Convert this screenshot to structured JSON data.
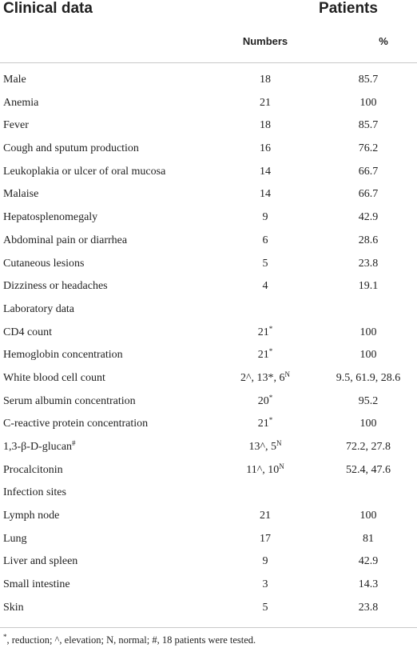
{
  "table": {
    "header": {
      "clinical_data": "Clinical data",
      "patients": "Patients",
      "numbers": "Numbers",
      "percent": "%"
    },
    "rows": [
      {
        "label": "Male",
        "num": "18",
        "pct": "85.7"
      },
      {
        "label": "Anemia",
        "num": "21",
        "pct": "100"
      },
      {
        "label": "Fever",
        "num": "18",
        "pct": "85.7"
      },
      {
        "label": "Cough and sputum production",
        "num": "16",
        "pct": "76.2"
      },
      {
        "label": "Leukoplakia or ulcer of oral mucosa",
        "num": "14",
        "pct": "66.7"
      },
      {
        "label": "Malaise",
        "num": "14",
        "pct": "66.7"
      },
      {
        "label": "Hepatosplenomegaly",
        "num": "9",
        "pct": "42.9"
      },
      {
        "label": "Abdominal pain or diarrhea",
        "num": "6",
        "pct": "28.6"
      },
      {
        "label": "Cutaneous lesions",
        "num": "5",
        "pct": "23.8"
      },
      {
        "label": "Dizziness or headaches",
        "num": "4",
        "pct": "19.1"
      },
      {
        "label": "Laboratory data",
        "num": "",
        "pct": ""
      },
      {
        "label": "CD4 count",
        "num": "21",
        "num_sup": "*",
        "pct": "100"
      },
      {
        "label": "Hemoglobin concentration",
        "num": "21",
        "num_sup": "*",
        "pct": "100"
      },
      {
        "label": "White blood cell count",
        "num": "2^, 13*, 6",
        "num_sup": "N",
        "pct": "9.5, 61.9, 28.6"
      },
      {
        "label": "Serum albumin concentration",
        "num": "20",
        "num_sup": "*",
        "pct": "95.2"
      },
      {
        "label": "C-reactive protein concentration",
        "num": "21",
        "num_sup": "*",
        "pct": "100"
      },
      {
        "label": "1,3-β-D-glucan",
        "label_sup": "#",
        "num": "13^, 5",
        "num_sup": "N",
        "pct": "72.2, 27.8"
      },
      {
        "label": "Procalcitonin",
        "num": "11^, 10",
        "num_sup": "N",
        "pct": "52.4, 47.6"
      },
      {
        "label": "Infection sites",
        "num": "",
        "pct": ""
      },
      {
        "label": "Lymph node",
        "num": "21",
        "pct": "100"
      },
      {
        "label": "Lung",
        "num": "17",
        "pct": "81"
      },
      {
        "label": "Liver and spleen",
        "num": "9",
        "pct": "42.9"
      },
      {
        "label": "Small intestine",
        "num": "3",
        "pct": "14.3"
      },
      {
        "label": "Skin",
        "num": "5",
        "pct": "23.8"
      }
    ]
  },
  "footnote": {
    "sup": "*",
    "text": ", reduction; ^, elevation; N, normal; #, 18 patients were tested."
  }
}
